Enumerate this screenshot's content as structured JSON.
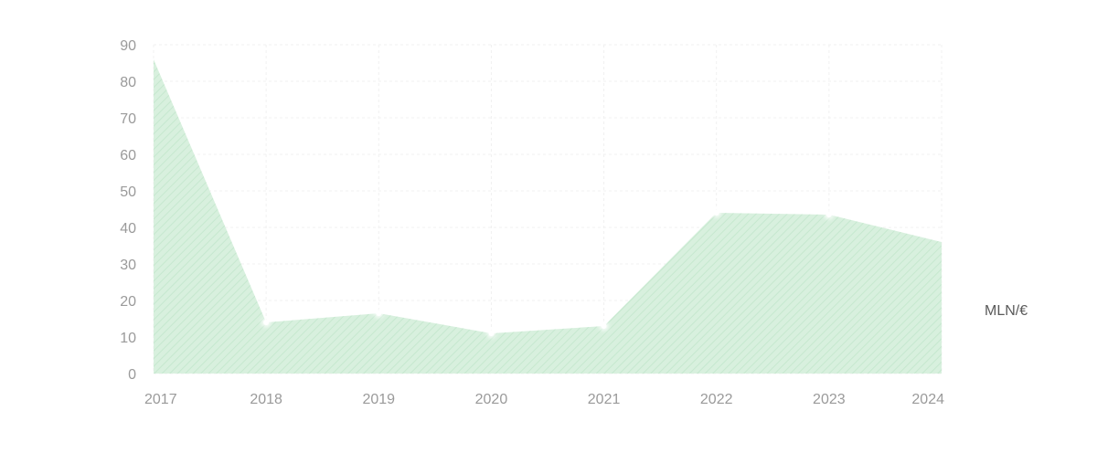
{
  "chart_data": {
    "type": "area",
    "x": [
      "2017",
      "2018",
      "2019",
      "2020",
      "2021",
      "2022",
      "2023",
      "2024"
    ],
    "series": [
      {
        "values": [
          86,
          14,
          16.5,
          11,
          13,
          44,
          43.5,
          36
        ]
      }
    ],
    "ylim": [
      0,
      90
    ],
    "yticks": [
      0,
      10,
      20,
      30,
      40,
      50,
      60,
      70,
      80,
      90
    ],
    "unit_label": "MLN/€",
    "grid": true,
    "colors": {
      "fill": "#d8f0de",
      "hatch": "#c4e6cd",
      "grid": "#f0f0f0",
      "point": "#ffffff",
      "tick": "#9a9a9a"
    }
  }
}
